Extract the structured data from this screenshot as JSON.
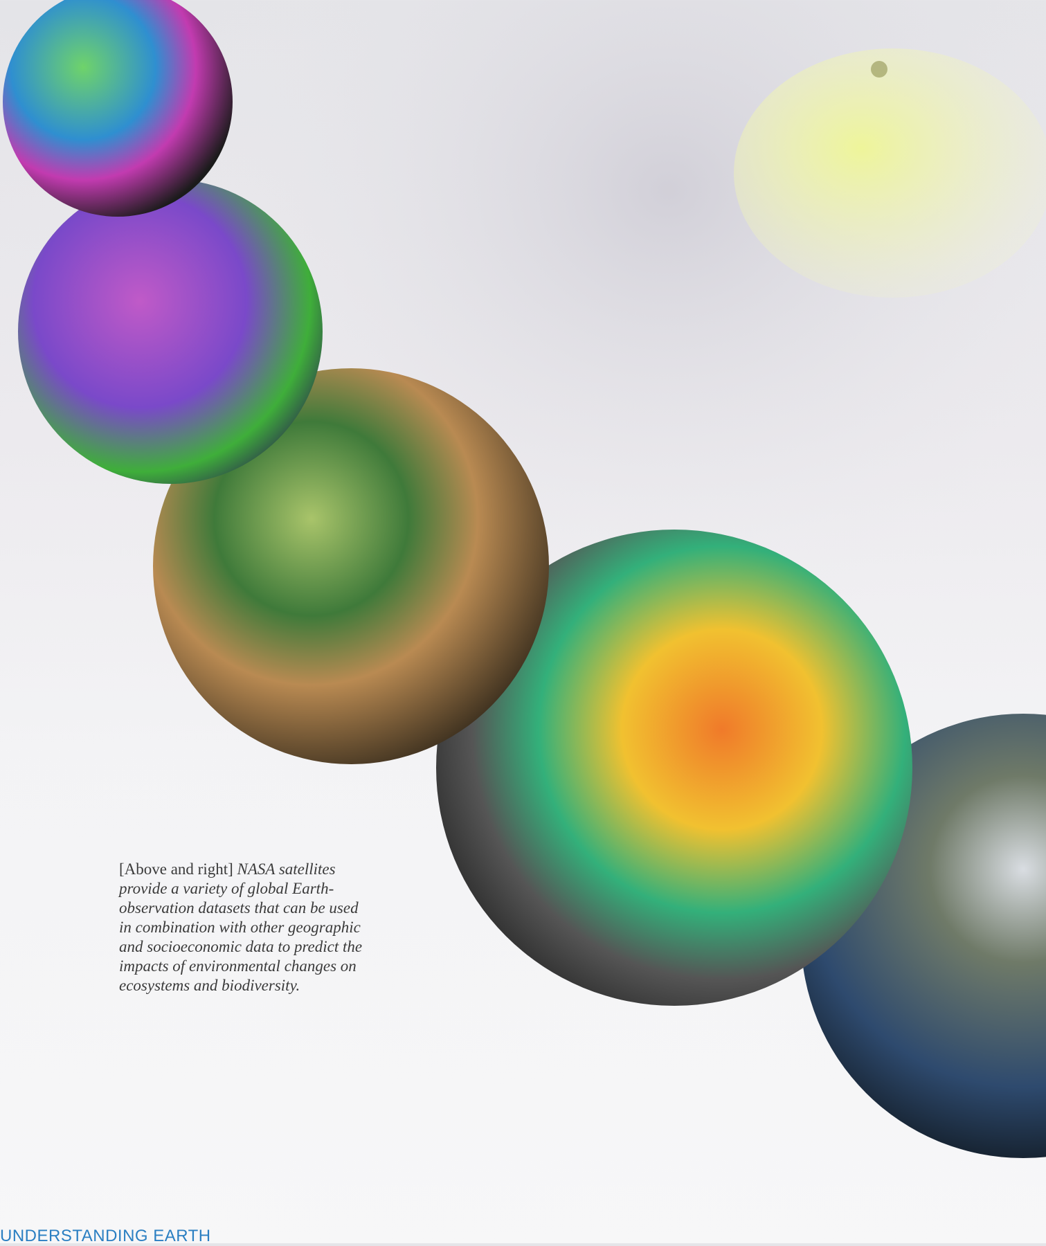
{
  "caption": {
    "label": "[Above and right]",
    "body": "NASA satellites provide a variety of global Earth-observation datasets that can be used in combination with other geographic and socioeconomic data to predict the impacts of environmental changes on ecosystems and biodiversity."
  },
  "footer": {
    "section": "UNDERSTANDING EARTH"
  }
}
